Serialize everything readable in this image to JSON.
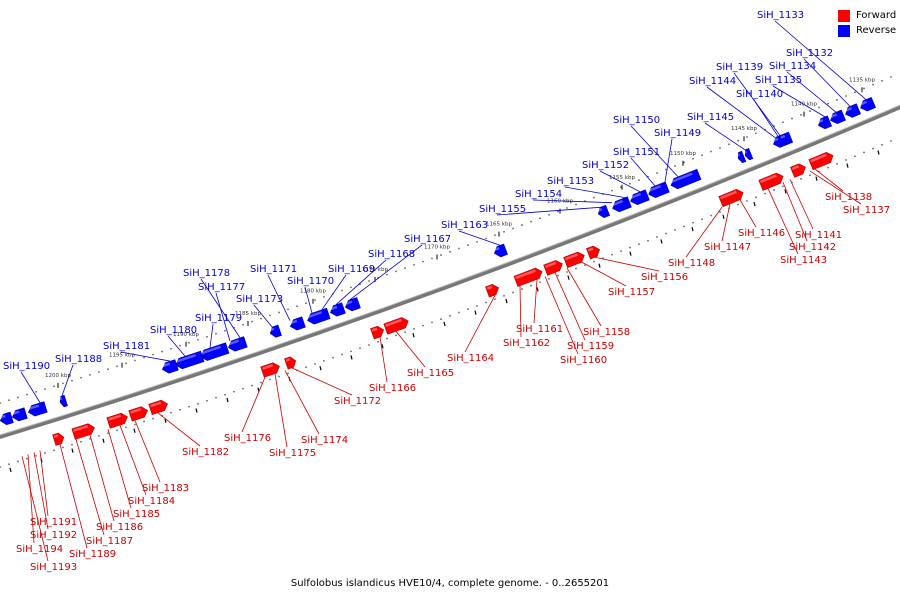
{
  "caption": "Sulfolobus islandicus HVE10/4, complete genome. - 0..2655201",
  "legend": [
    {
      "label": "Forward",
      "color": "#ff0000"
    },
    {
      "label": "Reverse",
      "color": "#0000ff"
    }
  ],
  "colors": {
    "forward": "#ff0000",
    "forward_dark": "#b00000",
    "reverse": "#0000ff",
    "reverse_dark": "#0000a0",
    "forward_label": "#cc0000",
    "reverse_label": "#0000cc"
  },
  "scale_labels": [
    "1135 kbp",
    "1140 kbp",
    "1145 kbp",
    "1150 kbp",
    "1155 kbp",
    "1160 kbp",
    "1165 kbp",
    "1170 kbp",
    "1175 kbp",
    "1180 kbp",
    "1185 kbp",
    "1190 kbp",
    "1195 kbp",
    "1200 kbp"
  ],
  "reverse_genes": [
    "SiH_1133",
    "SiH_1132",
    "SiH_1134",
    "SiH_1135",
    "SiH_1139",
    "SiH_1144",
    "SiH_1140",
    "SiH_1145",
    "SiH_1150",
    "SiH_1149",
    "SiH_1151",
    "SiH_1152",
    "SiH_1153",
    "SiH_1154",
    "SiH_1155",
    "SiH_1163",
    "SiH_1167",
    "SiH_1168",
    "SiH_1169",
    "SiH_1170",
    "SiH_1171",
    "SiH_1178",
    "SiH_1177",
    "SiH_1173",
    "SiH_1179",
    "SiH_1180",
    "SiH_1181",
    "SiH_1188",
    "SiH_1190"
  ],
  "forward_genes": [
    "SiH_1138",
    "SiH_1137",
    "SiH_1141",
    "SiH_1142",
    "SiH_1143",
    "SiH_1146",
    "SiH_1147",
    "SiH_1148",
    "SiH_1156",
    "SiH_1157",
    "SiH_1158",
    "SiH_1159",
    "SiH_1160",
    "SiH_1161",
    "SiH_1162",
    "SiH_1164",
    "SiH_1165",
    "SiH_1166",
    "SiH_1172",
    "SiH_1174",
    "SiH_1175",
    "SiH_1176",
    "SiH_1182",
    "SiH_1183",
    "SiH_1184",
    "SiH_1185",
    "SiH_1186",
    "SiH_1187",
    "SiH_1189",
    "SiH_1191",
    "SiH_1192",
    "SiH_1194",
    "SiH_1193"
  ]
}
